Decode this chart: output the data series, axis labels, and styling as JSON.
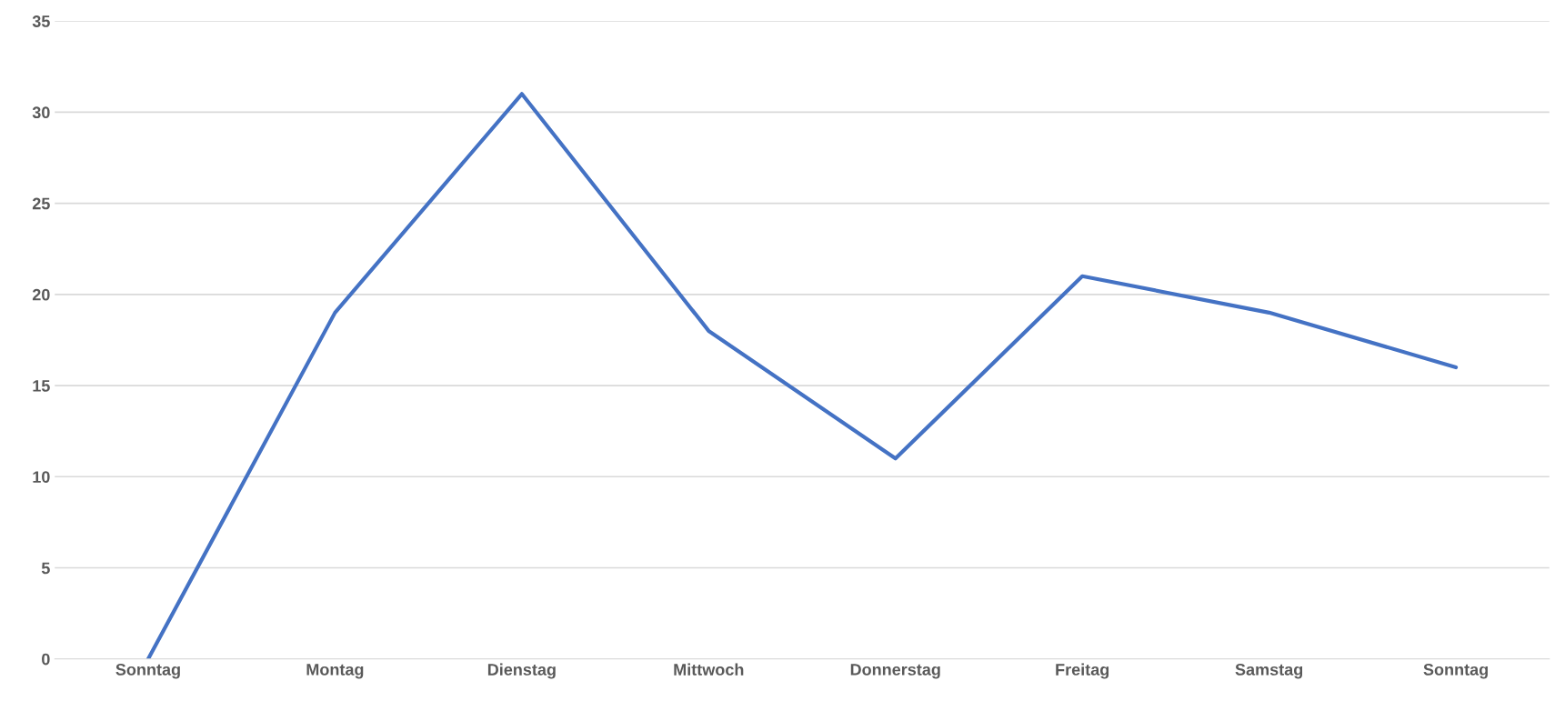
{
  "chart_data": {
    "type": "line",
    "categories": [
      "Sonntag",
      "Montag",
      "Dienstag",
      "Mittwoch",
      "Donnerstag",
      "Freitag",
      "Samstag",
      "Sonntag"
    ],
    "series": [
      {
        "color": "#4472c4",
        "values": [
          0,
          19,
          31,
          18,
          11,
          21,
          19,
          16
        ]
      }
    ],
    "ylim": [
      0,
      35
    ],
    "yticks": [
      0,
      5,
      10,
      15,
      20,
      25,
      30,
      35
    ],
    "grid": "y",
    "marker": "none",
    "line_style": "solid"
  }
}
